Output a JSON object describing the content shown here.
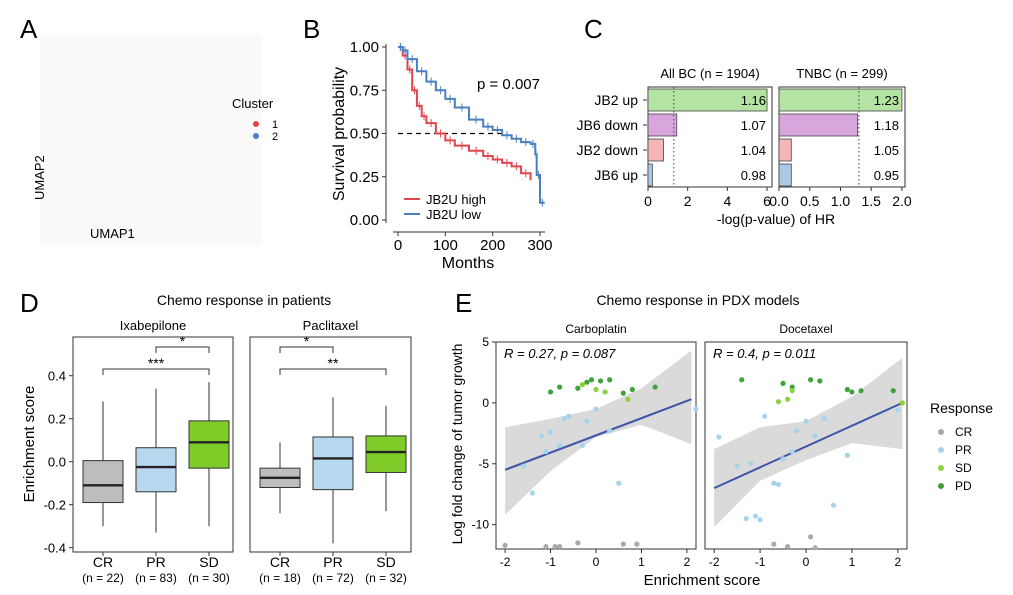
{
  "colors": {
    "red": "#E0464E",
    "blue": "#4A7FC1",
    "green_bar": "#B5E3A3",
    "purple_bar": "#D8A6DC",
    "pink_bar": "#F4B6B8",
    "lightblue_bar": "#A9C9E6",
    "box_gray": "#BDBDBD",
    "box_blue": "#B7D8EE",
    "box_green": "#7FCC29",
    "pt_cr": "#A9A9A9",
    "pt_pr": "#A6D4EC",
    "pt_sd": "#8BD23D",
    "pt_pd": "#3FA33C",
    "reg_line": "#4055A8",
    "ci_band": "#D3D3D3"
  },
  "panels": {
    "A": {
      "letter": "A",
      "legend_title": "Cluster",
      "legend_items": [
        "1",
        "2"
      ],
      "xlabel": "UMAP1",
      "ylabel": "UMAP2"
    },
    "B": {
      "letter": "B"
    },
    "C": {
      "letter": "C"
    },
    "D": {
      "letter": "D"
    },
    "E": {
      "letter": "E"
    }
  },
  "chart_data": [
    {
      "id": "B",
      "type": "line",
      "xlabel": "Months",
      "ylabel": "Survival probability",
      "xlim": [
        0,
        310
      ],
      "ylim": [
        0,
        1
      ],
      "xticks": [
        "0",
        "100",
        "200",
        "300"
      ],
      "yticks": [
        "0.00",
        "0.25",
        "0.50",
        "0.75",
        "1.00"
      ],
      "annotation": "p = 0.007",
      "median_line": 0.5,
      "series": [
        {
          "name": "JB2U high",
          "color": "red",
          "x": [
            0,
            10,
            20,
            30,
            40,
            50,
            60,
            80,
            100,
            120,
            150,
            180,
            200,
            220,
            240,
            260,
            280
          ],
          "y": [
            1.0,
            0.95,
            0.87,
            0.75,
            0.66,
            0.6,
            0.56,
            0.5,
            0.46,
            0.43,
            0.4,
            0.37,
            0.35,
            0.33,
            0.31,
            0.27,
            0.23
          ]
        },
        {
          "name": "JB2U low",
          "color": "blue",
          "x": [
            0,
            10,
            20,
            40,
            60,
            80,
            100,
            120,
            150,
            180,
            200,
            220,
            240,
            260,
            280,
            290,
            293,
            300,
            310
          ],
          "y": [
            1.0,
            0.98,
            0.93,
            0.86,
            0.8,
            0.75,
            0.7,
            0.65,
            0.58,
            0.54,
            0.52,
            0.49,
            0.47,
            0.45,
            0.44,
            0.38,
            0.26,
            0.1,
            0.1
          ]
        }
      ]
    },
    {
      "id": "C",
      "type": "bar",
      "xlabel": "-log(p-value) of HR",
      "categories": [
        "JB2 up",
        "JB6 down",
        "JB2 down",
        "JB6 up"
      ],
      "bar_colors": [
        "green_bar",
        "purple_bar",
        "pink_bar",
        "lightblue_bar"
      ],
      "facets": [
        {
          "title": "All BC (n = 1904)",
          "values": [
            6.0,
            1.45,
            0.78,
            0.22
          ],
          "hr_labels": [
            "1.16",
            "1.07",
            "1.04",
            "0.98"
          ],
          "xlim": [
            0,
            6.25
          ],
          "xticks": [
            "0",
            "2",
            "4",
            "6"
          ],
          "threshold": 1.3
        },
        {
          "title": "TNBC (n = 299)",
          "values": [
            2.0,
            1.28,
            0.2,
            0.2
          ],
          "hr_labels": [
            "1.23",
            "1.18",
            "1.05",
            "0.95"
          ],
          "xlim": [
            0,
            2.05
          ],
          "xticks": [
            "0.0",
            "0.5",
            "1.0",
            "1.5",
            "2.0"
          ],
          "threshold": 1.3
        }
      ]
    },
    {
      "id": "D",
      "type": "box",
      "title": "Chemo response in patients",
      "ylabel": "Enrichment score",
      "ylim": [
        -0.42,
        0.58
      ],
      "yticks": [
        "-0.4",
        "-0.2",
        "0.0",
        "0.2",
        "0.4"
      ],
      "groups": [
        "CR",
        "PR",
        "SD"
      ],
      "group_colors": [
        "box_gray",
        "box_blue",
        "box_green"
      ],
      "facets": [
        {
          "title": "Ixabepilone",
          "counts": [
            "(n = 22)",
            "(n = 83)",
            "(n = 30)"
          ],
          "boxes": [
            {
              "min": -0.3,
              "q1": -0.19,
              "median": -0.11,
              "q3": 0.005,
              "max": 0.28
            },
            {
              "min": -0.33,
              "q1": -0.14,
              "median": -0.025,
              "q3": 0.065,
              "max": 0.34
            },
            {
              "min": -0.3,
              "q1": -0.03,
              "median": 0.09,
              "q3": 0.19,
              "max": 0.37
            }
          ],
          "sig": [
            {
              "from": 1,
              "to": 2,
              "label": "*"
            },
            {
              "from": 0,
              "to": 2,
              "label": "***"
            }
          ]
        },
        {
          "title": "Paclitaxel",
          "counts": [
            "(n = 18)",
            "(n = 72)",
            "(n = 32)"
          ],
          "boxes": [
            {
              "min": -0.24,
              "q1": -0.12,
              "median": -0.075,
              "q3": -0.03,
              "max": 0.09
            },
            {
              "min": -0.38,
              "q1": -0.13,
              "median": 0.015,
              "q3": 0.115,
              "max": 0.3
            },
            {
              "min": -0.23,
              "q1": -0.05,
              "median": 0.045,
              "q3": 0.12,
              "max": 0.26
            }
          ],
          "sig": [
            {
              "from": 0,
              "to": 1,
              "label": "*"
            },
            {
              "from": 0,
              "to": 2,
              "label": "**"
            }
          ]
        }
      ]
    },
    {
      "id": "E",
      "type": "scatter",
      "title": "Chemo response in PDX models",
      "xlabel": "Enrichment score",
      "ylabel": "Log fold change of tumor growth",
      "xlim": [
        -2.2,
        2.2
      ],
      "ylim": [
        -12,
        5
      ],
      "xticks": [
        "-2",
        "-1",
        "0",
        "1",
        "2"
      ],
      "yticks": [
        "-10",
        "-5",
        "0",
        "5"
      ],
      "legend_title": "Response",
      "legend": [
        {
          "name": "CR",
          "color": "pt_cr"
        },
        {
          "name": "PR",
          "color": "pt_pr"
        },
        {
          "name": "SD",
          "color": "pt_sd"
        },
        {
          "name": "PD",
          "color": "pt_pd"
        }
      ],
      "facets": [
        {
          "title": "Carboplatin",
          "stat": "R = 0.27, p = 0.087",
          "line": [
            [
              -2.0,
              -5.5
            ],
            [
              2.1,
              0.3
            ]
          ],
          "band_upper": [
            [
              -2.0,
              -2.0
            ],
            [
              -1.0,
              -1.3
            ],
            [
              0.0,
              -0.5
            ],
            [
              1.0,
              1.2
            ],
            [
              2.1,
              4.3
            ]
          ],
          "band_lower": [
            [
              -2.0,
              -9.2
            ],
            [
              -1.0,
              -5.6
            ],
            [
              0.0,
              -2.8
            ],
            [
              1.0,
              -1.8
            ],
            [
              2.1,
              -3.4
            ]
          ],
          "points": [
            {
              "x": -2.0,
              "y": -11.7,
              "r": "CR"
            },
            {
              "x": -1.1,
              "y": -11.8,
              "r": "CR"
            },
            {
              "x": -0.9,
              "y": -11.8,
              "r": "CR"
            },
            {
              "x": -0.8,
              "y": -11.8,
              "r": "CR"
            },
            {
              "x": -0.4,
              "y": -11.5,
              "r": "CR"
            },
            {
              "x": 0.6,
              "y": -11.6,
              "r": "CR"
            },
            {
              "x": 0.9,
              "y": -11.6,
              "r": "CR"
            },
            {
              "x": -1.6,
              "y": -5.2,
              "r": "PR"
            },
            {
              "x": -1.4,
              "y": -7.4,
              "r": "PR"
            },
            {
              "x": -1.2,
              "y": -2.7,
              "r": "PR"
            },
            {
              "x": -1.1,
              "y": -4.0,
              "r": "PR"
            },
            {
              "x": -1.0,
              "y": -2.4,
              "r": "PR"
            },
            {
              "x": -0.8,
              "y": -3.5,
              "r": "PR"
            },
            {
              "x": -0.7,
              "y": -1.3,
              "r": "PR"
            },
            {
              "x": -0.6,
              "y": -1.1,
              "r": "PR"
            },
            {
              "x": -0.3,
              "y": -3.5,
              "r": "PR"
            },
            {
              "x": -0.2,
              "y": -1.5,
              "r": "PR"
            },
            {
              "x": 0.0,
              "y": -0.5,
              "r": "PR"
            },
            {
              "x": 0.3,
              "y": -2.3,
              "r": "PR"
            },
            {
              "x": 0.5,
              "y": -6.6,
              "r": "PR"
            },
            {
              "x": 2.2,
              "y": -0.5,
              "r": "PR"
            },
            {
              "x": -1.0,
              "y": 0.9,
              "r": "PD"
            },
            {
              "x": -0.8,
              "y": 1.3,
              "r": "PD"
            },
            {
              "x": -0.4,
              "y": 1.2,
              "r": "PD"
            },
            {
              "x": -0.2,
              "y": 1.7,
              "r": "PD"
            },
            {
              "x": -0.1,
              "y": 1.9,
              "r": "PD"
            },
            {
              "x": 0.1,
              "y": 1.8,
              "r": "PD"
            },
            {
              "x": 0.3,
              "y": 1.9,
              "r": "PD"
            },
            {
              "x": 0.6,
              "y": 0.8,
              "r": "PD"
            },
            {
              "x": 0.8,
              "y": 1.1,
              "r": "PD"
            },
            {
              "x": 1.3,
              "y": 1.3,
              "r": "PD"
            },
            {
              "x": -0.3,
              "y": 1.5,
              "r": "SD"
            },
            {
              "x": 0.0,
              "y": 1.1,
              "r": "SD"
            },
            {
              "x": 0.2,
              "y": 0.9,
              "r": "SD"
            },
            {
              "x": 0.7,
              "y": 0.3,
              "r": "SD"
            }
          ]
        },
        {
          "title": "Docetaxel",
          "stat": "R = 0.4, p = 0.011",
          "line": [
            [
              -2.0,
              -7.0
            ],
            [
              2.1,
              0.0
            ]
          ],
          "band_upper": [
            [
              -2.0,
              -3.8
            ],
            [
              -1.0,
              -2.0
            ],
            [
              0.0,
              -1.5
            ],
            [
              1.0,
              0.5
            ],
            [
              2.1,
              3.7
            ]
          ],
          "band_lower": [
            [
              -2.0,
              -10.2
            ],
            [
              -1.0,
              -6.4
            ],
            [
              0.0,
              -4.7
            ],
            [
              1.0,
              -3.3
            ],
            [
              2.1,
              -3.8
            ]
          ],
          "points": [
            {
              "x": -0.7,
              "y": -11.6,
              "r": "CR"
            },
            {
              "x": -0.4,
              "y": -11.8,
              "r": "CR"
            },
            {
              "x": 0.1,
              "y": -11.0,
              "r": "CR"
            },
            {
              "x": 0.2,
              "y": -11.9,
              "r": "CR"
            },
            {
              "x": -1.9,
              "y": -2.8,
              "r": "PR"
            },
            {
              "x": -1.5,
              "y": -5.2,
              "r": "PR"
            },
            {
              "x": -1.3,
              "y": -9.5,
              "r": "PR"
            },
            {
              "x": -1.2,
              "y": -5.0,
              "r": "PR"
            },
            {
              "x": -1.1,
              "y": -9.3,
              "r": "PR"
            },
            {
              "x": -1.0,
              "y": -9.6,
              "r": "PR"
            },
            {
              "x": -0.9,
              "y": -1.1,
              "r": "PR"
            },
            {
              "x": -0.7,
              "y": -6.6,
              "r": "PR"
            },
            {
              "x": -0.6,
              "y": -6.7,
              "r": "PR"
            },
            {
              "x": -0.5,
              "y": -4.6,
              "r": "PR"
            },
            {
              "x": -0.3,
              "y": -4.0,
              "r": "PR"
            },
            {
              "x": -0.2,
              "y": -2.3,
              "r": "PR"
            },
            {
              "x": 0.0,
              "y": -1.5,
              "r": "PR"
            },
            {
              "x": 0.2,
              "y": -2.7,
              "r": "PR"
            },
            {
              "x": 0.4,
              "y": -1.3,
              "r": "PR"
            },
            {
              "x": 0.6,
              "y": -8.4,
              "r": "PR"
            },
            {
              "x": 0.9,
              "y": -4.3,
              "r": "PR"
            },
            {
              "x": 2.0,
              "y": -0.6,
              "r": "PR"
            },
            {
              "x": -1.4,
              "y": 1.9,
              "r": "PD"
            },
            {
              "x": -0.5,
              "y": 1.6,
              "r": "PD"
            },
            {
              "x": -0.3,
              "y": 1.3,
              "r": "PD"
            },
            {
              "x": 0.1,
              "y": 1.9,
              "r": "PD"
            },
            {
              "x": 0.3,
              "y": 1.8,
              "r": "PD"
            },
            {
              "x": 0.9,
              "y": 1.1,
              "r": "PD"
            },
            {
              "x": 1.0,
              "y": 0.9,
              "r": "PD"
            },
            {
              "x": 1.2,
              "y": 1.0,
              "r": "PD"
            },
            {
              "x": 1.9,
              "y": 1.0,
              "r": "PD"
            },
            {
              "x": -0.6,
              "y": 0.1,
              "r": "SD"
            },
            {
              "x": -0.4,
              "y": 0.3,
              "r": "SD"
            },
            {
              "x": -0.3,
              "y": 1.0,
              "r": "SD"
            },
            {
              "x": 2.1,
              "y": 0.0,
              "r": "SD"
            }
          ]
        }
      ]
    }
  ]
}
